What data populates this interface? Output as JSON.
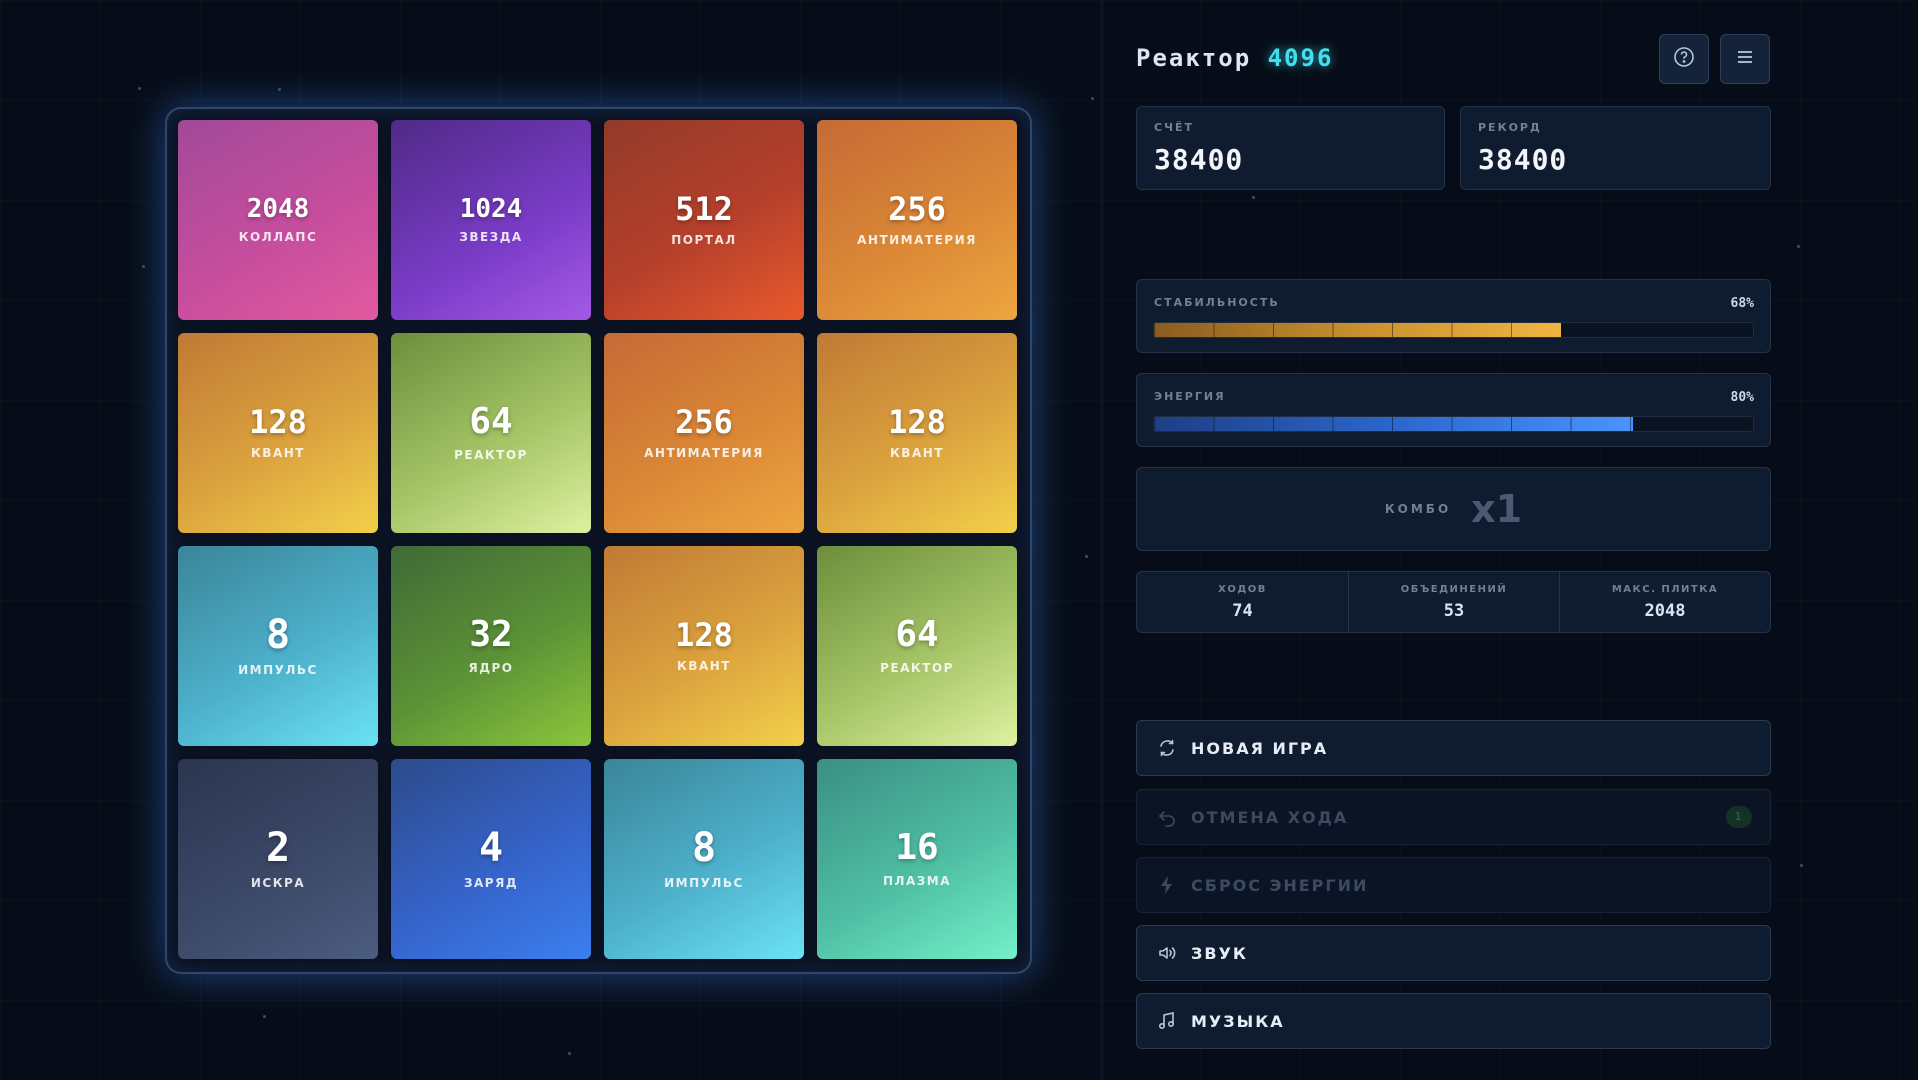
{
  "header": {
    "title": "Реактор",
    "title_accent": "4096"
  },
  "board": {
    "tiles": [
      {
        "value": "2048",
        "label": "КОЛЛАПС"
      },
      {
        "value": "1024",
        "label": "ЗВЕЗДА"
      },
      {
        "value": "512",
        "label": "ПОРТАЛ"
      },
      {
        "value": "256",
        "label": "АНТИМАТЕРИЯ"
      },
      {
        "value": "128",
        "label": "КВАНТ"
      },
      {
        "value": "64",
        "label": "РЕАКТОР"
      },
      {
        "value": "256",
        "label": "АНТИМАТЕРИЯ"
      },
      {
        "value": "128",
        "label": "КВАНТ"
      },
      {
        "value": "8",
        "label": "ИМПУЛЬС"
      },
      {
        "value": "32",
        "label": "ЯДРО"
      },
      {
        "value": "128",
        "label": "КВАНТ"
      },
      {
        "value": "64",
        "label": "РЕАКТОР"
      },
      {
        "value": "2",
        "label": "ИСКРА"
      },
      {
        "value": "4",
        "label": "ЗАРЯД"
      },
      {
        "value": "8",
        "label": "ИМПУЛЬС"
      },
      {
        "value": "16",
        "label": "ПЛАЗМА"
      }
    ]
  },
  "score": {
    "label": "СЧЁТ",
    "value": "38400"
  },
  "record": {
    "label": "РЕКОРД",
    "value": "38400"
  },
  "stability": {
    "label": "СТАБИЛЬНОСТЬ",
    "percent_text": "68%",
    "level": 0.68
  },
  "energy": {
    "label": "ЭНЕРГИЯ",
    "percent_text": "80%",
    "level": 0.8
  },
  "combo": {
    "label": "КОМБО",
    "value": "x1"
  },
  "stats": {
    "moves": {
      "label": "ХОДОВ",
      "value": "74"
    },
    "merges": {
      "label": "ОБЪЕДИНЕНИЙ",
      "value": "53"
    },
    "max_tile": {
      "label": "МАКС. ПЛИТКА",
      "value": "2048"
    }
  },
  "actions": {
    "new_game": "НОВАЯ ИГРА",
    "undo": "ОТМЕНА ХОДА",
    "undo_count": "1",
    "reset_energy": "СБРОС ЭНЕРГИИ",
    "sound": "ЗВУК",
    "music": "МУЗЫКА"
  },
  "icons": {
    "help": "help-circle-icon",
    "menu": "menu-icon",
    "new_game": "refresh-icon",
    "undo": "undo-icon",
    "reset_energy": "lightning-icon",
    "sound": "speaker-icon",
    "music": "music-note-icon"
  },
  "colors": {
    "accent": "#3fe0f0",
    "stability_bar": "#f0b540",
    "energy_bar": "#4a93ff"
  }
}
